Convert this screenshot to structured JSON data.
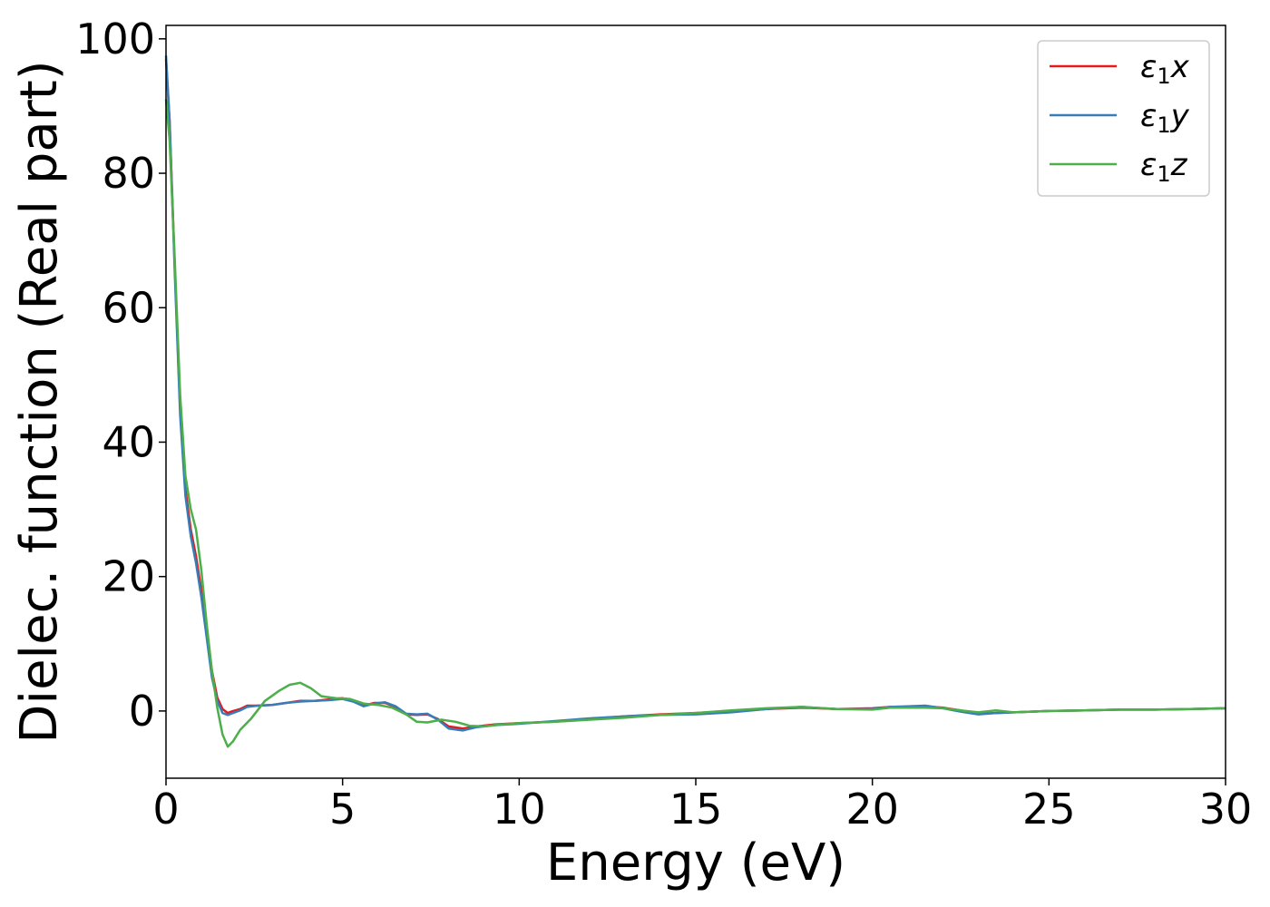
{
  "chart_data": {
    "type": "line",
    "title": "",
    "xlabel": "Energy (eV)",
    "ylabel": "Dielec. function (Real part)",
    "xlim": [
      0,
      30
    ],
    "ylim": [
      -10,
      102
    ],
    "xticks": [
      0,
      5,
      10,
      15,
      20,
      25,
      30
    ],
    "yticks": [
      0,
      20,
      40,
      60,
      80,
      100
    ],
    "grid": false,
    "legend_position": "top-right",
    "series": [
      {
        "name": "ε1x",
        "legend": {
          "base": "ε",
          "sub": "1",
          "tail": "x"
        },
        "color": "#e41a1c",
        "x": [
          0,
          0.1,
          0.25,
          0.4,
          0.55,
          0.7,
          0.85,
          1.0,
          1.15,
          1.3,
          1.45,
          1.6,
          1.75,
          1.9,
          2.1,
          2.3,
          2.6,
          3.0,
          3.4,
          3.8,
          4.2,
          4.6,
          5.0,
          5.3,
          5.6,
          5.9,
          6.2,
          6.5,
          6.8,
          7.1,
          7.4,
          7.7,
          8.0,
          8.4,
          8.8,
          9.3,
          10.0,
          11.0,
          12.0,
          13.0,
          14.0,
          15.0,
          16.0,
          17.0,
          18.0,
          19.0,
          20.0,
          20.5,
          21.0,
          21.5,
          22.0,
          22.5,
          23.0,
          23.5,
          24.0,
          24.5,
          25.0,
          26.0,
          27.0,
          28.0,
          29.0,
          30.0
        ],
        "values": [
          97,
          88,
          66,
          45,
          33,
          27,
          23,
          18,
          12,
          6,
          2,
          0.3,
          -0.3,
          0,
          0.3,
          0.8,
          0.8,
          0.9,
          1.2,
          1.5,
          1.5,
          1.7,
          1.9,
          1.6,
          0.8,
          1.2,
          1.2,
          0.6,
          -0.5,
          -0.6,
          -0.5,
          -1.2,
          -2.3,
          -2.6,
          -2.3,
          -2.0,
          -1.8,
          -1.6,
          -1.2,
          -0.8,
          -0.5,
          -0.3,
          0.0,
          0.3,
          0.5,
          0.3,
          0.4,
          0.6,
          0.6,
          0.7,
          0.5,
          0.1,
          -0.4,
          -0.3,
          -0.2,
          -0.1,
          0.0,
          0.1,
          0.2,
          0.2,
          0.3,
          0.4
        ]
      },
      {
        "name": "ε1y",
        "legend": {
          "base": "ε",
          "sub": "1",
          "tail": "y"
        },
        "color": "#377eb8",
        "x": [
          0,
          0.1,
          0.25,
          0.4,
          0.55,
          0.7,
          0.85,
          1.0,
          1.15,
          1.3,
          1.45,
          1.6,
          1.75,
          1.9,
          2.1,
          2.3,
          2.6,
          3.0,
          3.4,
          3.8,
          4.2,
          4.6,
          5.0,
          5.3,
          5.6,
          5.9,
          6.2,
          6.5,
          6.8,
          7.1,
          7.4,
          7.7,
          8.0,
          8.4,
          8.8,
          9.3,
          10.0,
          11.0,
          12.0,
          13.0,
          14.0,
          15.0,
          16.0,
          17.0,
          18.0,
          19.0,
          20.0,
          20.5,
          21.0,
          21.5,
          22.0,
          22.5,
          23.0,
          23.5,
          24.0,
          24.5,
          25.0,
          26.0,
          27.0,
          28.0,
          29.0,
          30.0
        ],
        "values": [
          97.5,
          88,
          65,
          44,
          32,
          26,
          22,
          17,
          11,
          5,
          1.5,
          -0.3,
          -0.6,
          -0.3,
          0.1,
          0.6,
          0.8,
          0.9,
          1.2,
          1.4,
          1.5,
          1.6,
          1.8,
          1.4,
          0.7,
          1.1,
          1.3,
          0.7,
          -0.4,
          -0.5,
          -0.4,
          -1.3,
          -2.6,
          -2.9,
          -2.4,
          -2.1,
          -1.9,
          -1.5,
          -1.1,
          -0.8,
          -0.6,
          -0.5,
          -0.2,
          0.3,
          0.6,
          0.3,
          0.3,
          0.6,
          0.7,
          0.8,
          0.4,
          -0.1,
          -0.5,
          -0.3,
          -0.2,
          -0.1,
          0.0,
          0.1,
          0.2,
          0.2,
          0.3,
          0.4
        ]
      },
      {
        "name": "ε1z",
        "legend": {
          "base": "ε",
          "sub": "1",
          "tail": "z"
        },
        "color": "#4daf4a",
        "x": [
          0,
          0.1,
          0.25,
          0.4,
          0.55,
          0.7,
          0.85,
          1.0,
          1.15,
          1.3,
          1.45,
          1.6,
          1.75,
          1.9,
          2.1,
          2.4,
          2.8,
          3.2,
          3.5,
          3.8,
          4.1,
          4.4,
          4.8,
          5.2,
          5.6,
          6.0,
          6.4,
          6.8,
          7.1,
          7.4,
          7.8,
          8.2,
          8.6,
          9.0,
          9.5,
          10.0,
          11.0,
          12.0,
          13.0,
          14.0,
          15.0,
          16.0,
          17.0,
          18.0,
          19.0,
          20.0,
          20.5,
          21.0,
          21.5,
          22.0,
          22.5,
          23.0,
          23.5,
          24.0,
          24.5,
          25.0,
          26.0,
          27.0,
          28.0,
          29.0,
          30.0
        ],
        "values": [
          91,
          85,
          67,
          47,
          35,
          30,
          27,
          21,
          13,
          6,
          0.5,
          -3.5,
          -5.3,
          -4.5,
          -2.8,
          -1.2,
          1.5,
          3.0,
          3.9,
          4.2,
          3.4,
          2.2,
          1.9,
          1.8,
          1.1,
          0.9,
          0.5,
          -0.5,
          -1.6,
          -1.7,
          -1.3,
          -1.6,
          -2.2,
          -2.3,
          -2.0,
          -1.8,
          -1.6,
          -1.3,
          -1.0,
          -0.6,
          -0.3,
          0.1,
          0.4,
          0.6,
          0.3,
          0.2,
          0.5,
          0.5,
          0.5,
          0.4,
          0.1,
          -0.2,
          0.1,
          -0.2,
          -0.1,
          0.0,
          0.1,
          0.2,
          0.2,
          0.3,
          0.4
        ]
      }
    ]
  }
}
